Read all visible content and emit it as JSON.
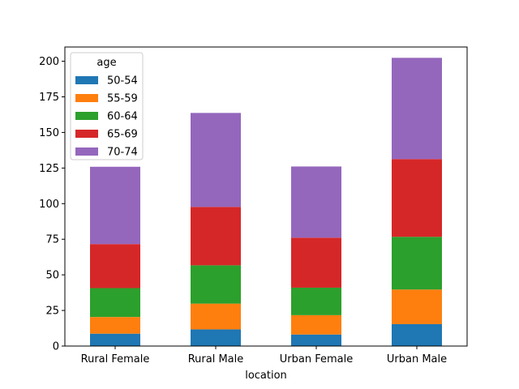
{
  "chart_data": {
    "type": "bar",
    "stacked": true,
    "title": "",
    "xlabel": "location",
    "ylabel": "",
    "ylim": [
      0,
      210
    ],
    "yticks": [
      0,
      25,
      50,
      75,
      100,
      125,
      150,
      175,
      200
    ],
    "categories": [
      "Rural Female",
      "Rural Male",
      "Urban Female",
      "Urban Male"
    ],
    "legend": {
      "title": "age",
      "placement": "top-left"
    },
    "grid": false,
    "series": [
      {
        "name": "50-54",
        "color": "#1f77b4",
        "values": [
          8.7,
          11.7,
          8.1,
          15.4
        ]
      },
      {
        "name": "55-59",
        "color": "#ff7f0e",
        "values": [
          11.7,
          18.1,
          13.6,
          24.3
        ]
      },
      {
        "name": "60-64",
        "color": "#2ca02c",
        "values": [
          20.3,
          26.9,
          19.3,
          37.0
        ]
      },
      {
        "name": "65-69",
        "color": "#d62728",
        "values": [
          30.9,
          41.0,
          35.1,
          54.6
        ]
      },
      {
        "name": "70-74",
        "color": "#9467bd",
        "values": [
          54.3,
          66.0,
          50.0,
          71.1
        ]
      }
    ]
  }
}
